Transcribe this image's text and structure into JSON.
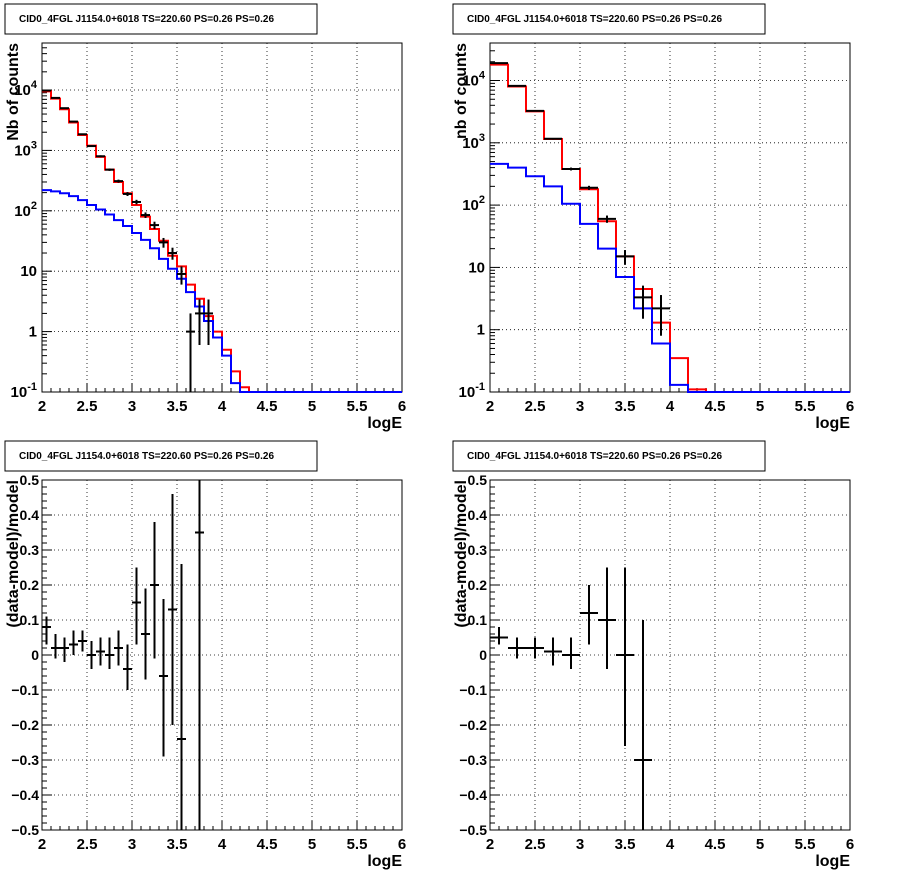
{
  "chart_data": [
    {
      "type": "histogram",
      "title": "CID0_4FGL J1154.0+6018 TS=220.60 PS=0.26 PS=0.26",
      "xlabel": "logE",
      "ylabel": "Nb of counts",
      "xlim": [
        2,
        6
      ],
      "ylim": [
        0.1,
        60000
      ],
      "yscale": "log",
      "grid": true,
      "x_ticks": [
        "2",
        "2.5",
        "3",
        "3.5",
        "4",
        "4.5",
        "5",
        "5.5",
        "6"
      ],
      "y_ticks": [
        "10^-1",
        "1",
        "10",
        "10^2",
        "10^3",
        "10^4"
      ],
      "bin_edges_start": 2.0,
      "bin_width": 0.1,
      "series": [
        {
          "color": "#ff0000",
          "values": [
            9500,
            7200,
            4800,
            2900,
            1800,
            1200,
            780,
            480,
            300,
            195,
            125,
            80,
            50,
            32,
            18,
            12,
            6,
            3.5,
            1.8,
            1.0,
            0.5,
            0.22,
            0.12,
            0.1,
            0.1,
            0.1,
            0.1,
            0.1,
            0.1,
            0.1,
            0.1,
            0.1,
            0.1,
            0.1,
            0.1,
            0.1,
            0.1,
            0.1,
            0.1,
            0.1
          ]
        },
        {
          "color": "#0000ff",
          "values": [
            220,
            210,
            195,
            175,
            150,
            125,
            105,
            87,
            70,
            56,
            43,
            33,
            24,
            16,
            11,
            7.5,
            4.5,
            2.6,
            1.5,
            0.8,
            0.4,
            0.14,
            0.1,
            0.1,
            0.1,
            0.1,
            0.1,
            0.1,
            0.1,
            0.1,
            0.1,
            0.1,
            0.1,
            0.1,
            0.1,
            0.1,
            0.1,
            0.1,
            0.1,
            0.1
          ]
        }
      ],
      "data_points": [
        {
          "x": 2.05,
          "y": 9800,
          "lo": 9700,
          "hi": 9900
        },
        {
          "x": 2.15,
          "y": 7400,
          "lo": 7310,
          "hi": 7490
        },
        {
          "x": 2.25,
          "y": 5000,
          "lo": 4930,
          "hi": 5070
        },
        {
          "x": 2.35,
          "y": 3000,
          "lo": 2945,
          "hi": 3055
        },
        {
          "x": 2.45,
          "y": 1850,
          "lo": 1807,
          "hi": 1893
        },
        {
          "x": 2.55,
          "y": 1180,
          "lo": 1146,
          "hi": 1214
        },
        {
          "x": 2.65,
          "y": 800,
          "lo": 772,
          "hi": 828
        },
        {
          "x": 2.75,
          "y": 480,
          "lo": 458,
          "hi": 502
        },
        {
          "x": 2.85,
          "y": 310,
          "lo": 292,
          "hi": 328
        },
        {
          "x": 2.95,
          "y": 190,
          "lo": 176,
          "hi": 204
        },
        {
          "x": 3.05,
          "y": 140,
          "lo": 128,
          "hi": 152
        },
        {
          "x": 3.15,
          "y": 85,
          "lo": 76,
          "hi": 94
        },
        {
          "x": 3.25,
          "y": 58,
          "lo": 50,
          "hi": 66
        },
        {
          "x": 3.35,
          "y": 30,
          "lo": 24.5,
          "hi": 35.5
        },
        {
          "x": 3.45,
          "y": 20,
          "lo": 15.5,
          "hi": 24.5
        },
        {
          "x": 3.55,
          "y": 9,
          "lo": 6,
          "hi": 12
        },
        {
          "x": 3.65,
          "y": 1,
          "lo": 0.1,
          "hi": 2
        },
        {
          "x": 3.75,
          "y": 2,
          "lo": 0.6,
          "hi": 3.4
        },
        {
          "x": 3.85,
          "y": 2,
          "lo": 0.6,
          "hi": 3.4
        }
      ]
    },
    {
      "type": "histogram",
      "title": "CID0_4FGL J1154.0+6018 TS=220.60 PS=0.26 PS=0.26",
      "xlabel": "logE",
      "ylabel": "nb of counts",
      "xlim": [
        2,
        6
      ],
      "ylim": [
        0.1,
        40000
      ],
      "yscale": "log",
      "grid": true,
      "x_ticks": [
        "2",
        "2.5",
        "3",
        "3.5",
        "4",
        "4.5",
        "5",
        "5.5",
        "6"
      ],
      "y_ticks": [
        "10^-1",
        "1",
        "10",
        "10^2",
        "10^3",
        "10^4"
      ],
      "bin_edges_start": 2.0,
      "bin_width": 0.2,
      "series": [
        {
          "color": "#ff0000",
          "values": [
            18000,
            8000,
            3200,
            1150,
            380,
            180,
            55,
            15,
            4.5,
            1.3,
            0.35,
            0.11,
            0.1,
            0.1,
            0.1,
            0.1,
            0.1,
            0.1,
            0.1,
            0.1
          ]
        },
        {
          "color": "#0000ff",
          "values": [
            460,
            400,
            290,
            200,
            105,
            50,
            20,
            7,
            2.2,
            0.6,
            0.13,
            0.1,
            0.1,
            0.1,
            0.1,
            0.1,
            0.1,
            0.1,
            0.1,
            0.1
          ]
        }
      ],
      "data_points": [
        {
          "x": 2.1,
          "y": 19000,
          "lo": 18860,
          "hi": 19140
        },
        {
          "x": 2.3,
          "y": 8200,
          "lo": 8110,
          "hi": 8290
        },
        {
          "x": 2.5,
          "y": 3250,
          "lo": 3193,
          "hi": 3307
        },
        {
          "x": 2.7,
          "y": 1160,
          "lo": 1126,
          "hi": 1194
        },
        {
          "x": 2.9,
          "y": 380,
          "lo": 360,
          "hi": 400
        },
        {
          "x": 3.1,
          "y": 190,
          "lo": 176,
          "hi": 204
        },
        {
          "x": 3.3,
          "y": 60,
          "lo": 52,
          "hi": 68
        },
        {
          "x": 3.5,
          "y": 15,
          "lo": 11,
          "hi": 19
        },
        {
          "x": 3.7,
          "y": 3.3,
          "lo": 1.5,
          "hi": 5.1
        },
        {
          "x": 3.9,
          "y": 2.2,
          "lo": 0.8,
          "hi": 3.6
        }
      ]
    },
    {
      "type": "scatter",
      "title": "CID0_4FGL J1154.0+6018 TS=220.60 PS=0.26 PS=0.26",
      "xlabel": "logE",
      "ylabel": "(data-model)/model",
      "xlim": [
        2,
        6
      ],
      "ylim": [
        -0.5,
        0.5
      ],
      "grid": true,
      "x_ticks": [
        "2",
        "2.5",
        "3",
        "3.5",
        "4",
        "4.5",
        "5",
        "5.5",
        "6"
      ],
      "y_ticks": [
        "−0.5",
        "−0.4",
        "−0.3",
        "−0.2",
        "−0.1",
        "0",
        "0.1",
        "0.2",
        "0.3",
        "0.4",
        "0.5"
      ],
      "data_points": [
        {
          "x": 2.05,
          "y": 0.08,
          "ylo": 0.03,
          "yhi": 0.11
        },
        {
          "x": 2.15,
          "y": 0.02,
          "ylo": -0.01,
          "yhi": 0.06
        },
        {
          "x": 2.25,
          "y": 0.02,
          "ylo": -0.02,
          "yhi": 0.05
        },
        {
          "x": 2.35,
          "y": 0.03,
          "ylo": 0.0,
          "yhi": 0.07
        },
        {
          "x": 2.45,
          "y": 0.04,
          "ylo": 0.01,
          "yhi": 0.07
        },
        {
          "x": 2.55,
          "y": 0.0,
          "ylo": -0.04,
          "yhi": 0.04
        },
        {
          "x": 2.65,
          "y": 0.01,
          "ylo": -0.03,
          "yhi": 0.05
        },
        {
          "x": 2.75,
          "y": 0.0,
          "ylo": -0.04,
          "yhi": 0.05
        },
        {
          "x": 2.85,
          "y": 0.02,
          "ylo": -0.03,
          "yhi": 0.07
        },
        {
          "x": 2.95,
          "y": -0.04,
          "ylo": -0.1,
          "yhi": 0.03
        },
        {
          "x": 3.05,
          "y": 0.15,
          "ylo": 0.03,
          "yhi": 0.25
        },
        {
          "x": 3.15,
          "y": 0.06,
          "ylo": -0.07,
          "yhi": 0.19
        },
        {
          "x": 3.25,
          "y": 0.2,
          "ylo": -0.01,
          "yhi": 0.38
        },
        {
          "x": 3.35,
          "y": -0.06,
          "ylo": -0.29,
          "yhi": 0.16
        },
        {
          "x": 3.45,
          "y": 0.13,
          "ylo": -0.2,
          "yhi": 0.46
        },
        {
          "x": 3.55,
          "y": -0.24,
          "ylo": -0.5,
          "yhi": 0.26
        },
        {
          "x": 3.75,
          "y": 0.35,
          "ylo": -0.5,
          "yhi": 0.5
        }
      ]
    },
    {
      "type": "scatter",
      "title": "CID0_4FGL J1154.0+6018 TS=220.60 PS=0.26 PS=0.26",
      "xlabel": "logE",
      "ylabel": "(data-model)/model",
      "xlim": [
        2,
        6
      ],
      "ylim": [
        -0.5,
        0.5
      ],
      "grid": true,
      "x_ticks": [
        "2",
        "2.5",
        "3",
        "3.5",
        "4",
        "4.5",
        "5",
        "5.5",
        "6"
      ],
      "y_ticks": [
        "−0.5",
        "−0.4",
        "−0.3",
        "−0.2",
        "−0.1",
        "0",
        "0.1",
        "0.2",
        "0.3",
        "0.4",
        "0.5"
      ],
      "data_points": [
        {
          "x": 2.1,
          "y": 0.05,
          "ylo": 0.03,
          "yhi": 0.08
        },
        {
          "x": 2.3,
          "y": 0.02,
          "ylo": -0.01,
          "yhi": 0.05
        },
        {
          "x": 2.5,
          "y": 0.02,
          "ylo": -0.01,
          "yhi": 0.05
        },
        {
          "x": 2.7,
          "y": 0.01,
          "ylo": -0.03,
          "yhi": 0.05
        },
        {
          "x": 2.9,
          "y": 0.0,
          "ylo": -0.04,
          "yhi": 0.05
        },
        {
          "x": 3.1,
          "y": 0.12,
          "ylo": 0.03,
          "yhi": 0.2
        },
        {
          "x": 3.3,
          "y": 0.1,
          "ylo": -0.04,
          "yhi": 0.25
        },
        {
          "x": 3.5,
          "y": 0.0,
          "ylo": -0.26,
          "yhi": 0.25
        },
        {
          "x": 3.7,
          "y": -0.3,
          "ylo": -0.5,
          "yhi": 0.1
        }
      ]
    }
  ]
}
